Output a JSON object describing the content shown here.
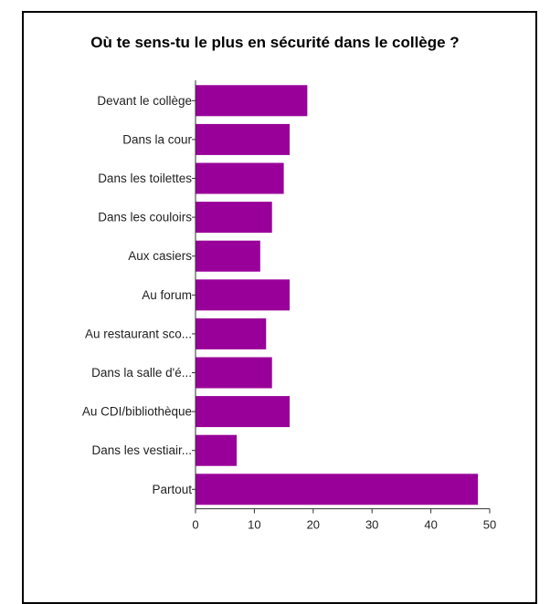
{
  "chart_data": {
    "type": "bar",
    "orientation": "horizontal",
    "title": "Où te sens-tu le plus en sécurité dans le collège ?",
    "xlabel": "",
    "ylabel": "",
    "categories": [
      "Devant le collège",
      "Dans la cour",
      "Dans les toilettes",
      "Dans les couloirs",
      "Aux casiers",
      "Au forum",
      "Au restaurant sco...",
      "Dans la salle d'é...",
      "Au CDI/bibliothèque",
      "Dans les vestiair...",
      "Partout"
    ],
    "values": [
      19,
      16,
      15,
      13,
      11,
      16,
      12,
      13,
      16,
      7,
      48
    ],
    "xlim": [
      0,
      50
    ],
    "xticks": [
      "0",
      "10",
      "20",
      "30",
      "40",
      "50"
    ],
    "grid": false,
    "legend": "none",
    "bar_color": "#990099"
  }
}
